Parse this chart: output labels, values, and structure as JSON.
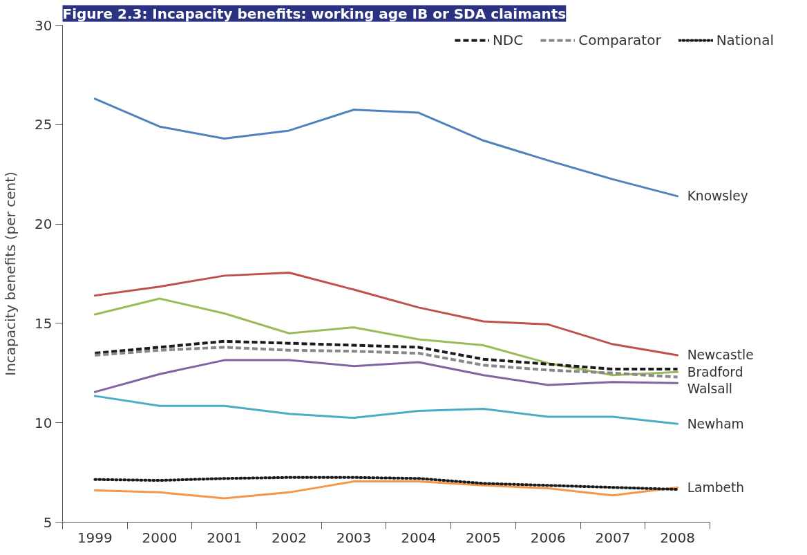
{
  "chart_data": {
    "type": "line",
    "title": "Figure 2.3: Incapacity benefits: working age IB or SDA claimants",
    "ylabel": "Incapacity benefits (per cent)",
    "categories": [
      "1999",
      "2000",
      "2001",
      "2002",
      "2003",
      "2004",
      "2005",
      "2006",
      "2007",
      "2008"
    ],
    "ylim": [
      5,
      30
    ],
    "yticks": [
      5,
      10,
      15,
      20,
      25,
      30
    ],
    "grid": false,
    "legend": "top right",
    "line_style": "solid",
    "series": [
      {
        "name": "Knowsley",
        "color": "#4f81bd",
        "values": [
          26.3,
          24.9,
          24.3,
          24.7,
          25.75,
          25.6,
          24.2,
          23.2,
          22.25,
          21.4
        ]
      },
      {
        "name": "Newcastle",
        "color": "#c0504d",
        "values": [
          16.4,
          16.85,
          17.4,
          17.55,
          16.7,
          15.8,
          15.1,
          14.95,
          13.95,
          13.4
        ]
      },
      {
        "name": "Bradford",
        "color": "#9bbb59",
        "values": [
          15.45,
          16.25,
          15.5,
          14.5,
          14.8,
          14.2,
          13.9,
          13.0,
          12.4,
          12.55
        ]
      },
      {
        "name": "Walsall",
        "color": "#8064a2",
        "values": [
          11.55,
          12.45,
          13.15,
          13.15,
          12.85,
          13.05,
          12.4,
          11.9,
          12.05,
          12.0
        ]
      },
      {
        "name": "Newham",
        "color": "#4bacc6",
        "values": [
          11.35,
          10.85,
          10.85,
          10.45,
          10.25,
          10.6,
          10.7,
          10.3,
          10.3,
          9.95
        ]
      },
      {
        "name": "Lambeth",
        "color": "#f79646",
        "values": [
          6.6,
          6.5,
          6.2,
          6.5,
          7.05,
          7.05,
          6.85,
          6.7,
          6.35,
          6.75
        ]
      },
      {
        "name": "NDC",
        "color": "#1a1a1a",
        "line_style": "dashed",
        "values": [
          13.5,
          13.8,
          14.1,
          14.0,
          13.9,
          13.8,
          13.2,
          12.95,
          12.7,
          12.7
        ]
      },
      {
        "name": "Comparator",
        "color": "#888888",
        "line_style": "dashed",
        "values": [
          13.4,
          13.65,
          13.8,
          13.65,
          13.6,
          13.5,
          12.9,
          12.65,
          12.5,
          12.3
        ]
      },
      {
        "name": "National",
        "color": "#1a1a1a",
        "line_style": "dotted",
        "values": [
          7.15,
          7.1,
          7.2,
          7.25,
          7.25,
          7.2,
          6.95,
          6.85,
          6.75,
          6.65
        ]
      }
    ]
  }
}
